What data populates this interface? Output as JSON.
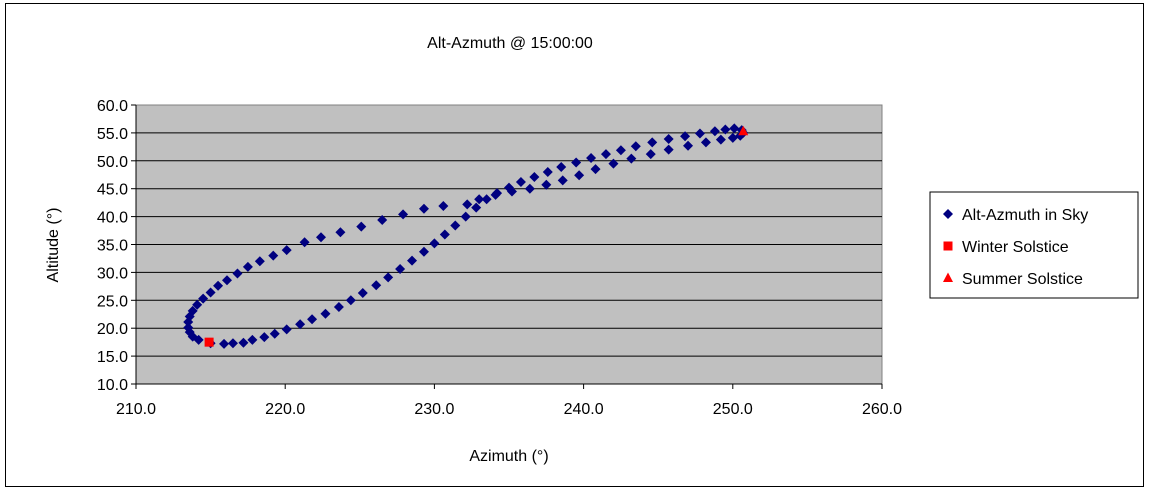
{
  "chart_data": {
    "type": "scatter",
    "title": "Alt-Azmuth @ 15:00:00",
    "xlabel": "Azimuth (°)",
    "ylabel": "Altitude (°)",
    "xlim": [
      210,
      260
    ],
    "ylim": [
      10,
      60
    ],
    "xticks": [
      "210.0",
      "220.0",
      "230.0",
      "240.0",
      "250.0",
      "260.0"
    ],
    "yticks": [
      "60.0",
      "55.0",
      "50.0",
      "45.0",
      "40.0",
      "35.0",
      "30.0",
      "25.0",
      "20.0",
      "15.0",
      "10.0"
    ],
    "grid": "horizontal",
    "legend_position": "right",
    "plot_background": "#c0c0c0",
    "series": [
      {
        "name": "Alt-Azmuth in Sky",
        "marker": "diamond",
        "color": "#000080",
        "points": [
          [
            215.0,
            17.3
          ],
          [
            215.9,
            17.2
          ],
          [
            216.5,
            17.3
          ],
          [
            217.2,
            17.4
          ],
          [
            217.8,
            17.9
          ],
          [
            218.6,
            18.4
          ],
          [
            219.3,
            19.0
          ],
          [
            220.1,
            19.8
          ],
          [
            221.0,
            20.7
          ],
          [
            221.8,
            21.6
          ],
          [
            222.7,
            22.6
          ],
          [
            223.6,
            23.8
          ],
          [
            224.4,
            25.0
          ],
          [
            225.2,
            26.3
          ],
          [
            226.1,
            27.7
          ],
          [
            226.9,
            29.1
          ],
          [
            227.7,
            30.6
          ],
          [
            228.5,
            32.1
          ],
          [
            229.3,
            33.7
          ],
          [
            230.0,
            35.2
          ],
          [
            230.7,
            36.8
          ],
          [
            231.4,
            38.4
          ],
          [
            232.1,
            40.0
          ],
          [
            232.8,
            41.6
          ],
          [
            233.5,
            43.1
          ],
          [
            234.2,
            44.2
          ],
          [
            235.0,
            45.2
          ],
          [
            235.8,
            46.2
          ],
          [
            236.7,
            47.1
          ],
          [
            237.6,
            48.0
          ],
          [
            238.5,
            48.9
          ],
          [
            239.5,
            49.7
          ],
          [
            240.5,
            50.5
          ],
          [
            241.5,
            51.2
          ],
          [
            242.5,
            51.9
          ],
          [
            243.5,
            52.6
          ],
          [
            244.6,
            53.3
          ],
          [
            245.7,
            53.9
          ],
          [
            246.8,
            54.4
          ],
          [
            247.8,
            54.9
          ],
          [
            248.8,
            55.3
          ],
          [
            249.5,
            55.6
          ],
          [
            250.1,
            55.8
          ],
          [
            250.6,
            55.5
          ],
          [
            250.7,
            55.0
          ],
          [
            250.5,
            54.5
          ],
          [
            250.0,
            54.1
          ],
          [
            249.2,
            53.8
          ],
          [
            248.2,
            53.3
          ],
          [
            247.0,
            52.7
          ],
          [
            245.7,
            52.0
          ],
          [
            244.5,
            51.2
          ],
          [
            243.2,
            50.4
          ],
          [
            242.0,
            49.5
          ],
          [
            240.8,
            48.5
          ],
          [
            239.7,
            47.4
          ],
          [
            238.6,
            46.5
          ],
          [
            237.5,
            45.7
          ],
          [
            236.4,
            45.0
          ],
          [
            235.2,
            44.5
          ],
          [
            234.1,
            43.9
          ],
          [
            233.0,
            43.1
          ],
          [
            232.2,
            42.2
          ],
          [
            230.6,
            41.9
          ],
          [
            229.3,
            41.4
          ],
          [
            227.9,
            40.4
          ],
          [
            226.5,
            39.4
          ],
          [
            225.1,
            38.2
          ],
          [
            223.7,
            37.2
          ],
          [
            222.4,
            36.3
          ],
          [
            221.3,
            35.4
          ],
          [
            220.1,
            34.0
          ],
          [
            219.2,
            33.0
          ],
          [
            218.3,
            32.0
          ],
          [
            217.5,
            31.0
          ],
          [
            216.8,
            29.8
          ],
          [
            216.1,
            28.6
          ],
          [
            215.5,
            27.6
          ],
          [
            215.0,
            26.4
          ],
          [
            214.5,
            25.3
          ],
          [
            214.1,
            24.2
          ],
          [
            213.8,
            23.1
          ],
          [
            213.6,
            22.1
          ],
          [
            213.5,
            21.1
          ],
          [
            213.5,
            20.1
          ],
          [
            213.6,
            19.3
          ],
          [
            213.8,
            18.5
          ],
          [
            214.2,
            17.9
          ]
        ]
      },
      {
        "name": "Winter Solstice",
        "marker": "square",
        "color": "#ff0000",
        "points": [
          [
            214.9,
            17.5
          ]
        ]
      },
      {
        "name": "Summer Solstice",
        "marker": "triangle",
        "color": "#ff0000",
        "points": [
          [
            250.7,
            55.3
          ]
        ]
      }
    ]
  }
}
